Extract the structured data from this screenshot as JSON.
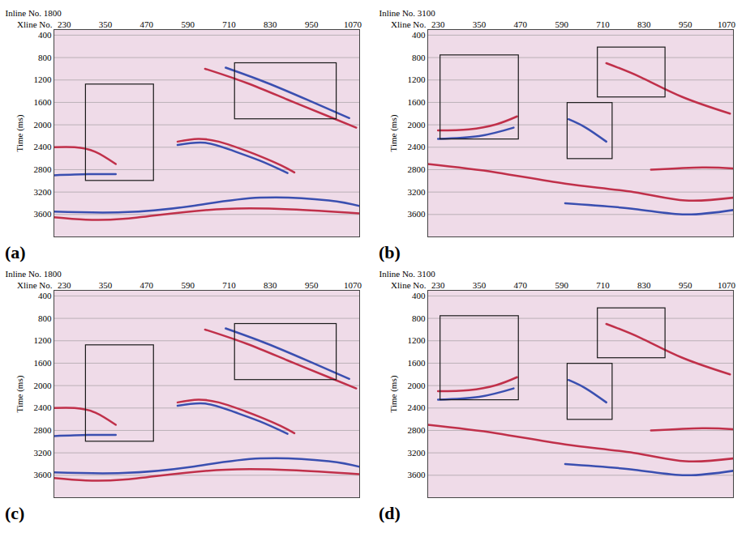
{
  "chart_data": [
    {
      "type": "seismic_section",
      "panel": "(a)",
      "title": "Inline No. 1800",
      "xlabel": "Xline No.",
      "ylabel": "Time (ms)",
      "xlim": [
        200,
        1090
      ],
      "xticks": [
        230,
        350,
        470,
        590,
        710,
        830,
        950,
        1070
      ],
      "ylim": [
        300,
        4000
      ],
      "yticks": [
        400,
        800,
        1200,
        1600,
        2000,
        2400,
        2800,
        3200,
        3600
      ],
      "grid": true,
      "boxes": [
        {
          "x": [
            293,
            491
          ],
          "y": [
            1280,
            3000
          ]
        },
        {
          "x": [
            727,
            1023
          ],
          "y": [
            900,
            1900
          ]
        }
      ],
      "reflectors": [
        {
          "color": "#c0304a",
          "points": [
            [
              560,
              2300
            ],
            [
              620,
              2250
            ],
            [
              680,
              2300
            ],
            [
              740,
              2420
            ],
            [
              800,
              2560
            ],
            [
              860,
              2720
            ],
            [
              900,
              2850
            ]
          ]
        },
        {
          "color": "#3a4fb0",
          "points": [
            [
              560,
              2360
            ],
            [
              640,
              2320
            ],
            [
              720,
              2460
            ],
            [
              800,
              2640
            ],
            [
              880,
              2860
            ]
          ]
        },
        {
          "color": "#c0304a",
          "points": [
            [
              640,
              1000
            ],
            [
              760,
              1250
            ],
            [
              880,
              1550
            ],
            [
              1000,
              1850
            ],
            [
              1080,
              2050
            ]
          ]
        },
        {
          "color": "#3a4fb0",
          "points": [
            [
              700,
              980
            ],
            [
              820,
              1250
            ],
            [
              940,
              1560
            ],
            [
              1060,
              1880
            ]
          ]
        },
        {
          "color": "#c0304a",
          "points": [
            [
              200,
              2400
            ],
            [
              260,
              2400
            ],
            [
              320,
              2480
            ],
            [
              380,
              2700
            ]
          ]
        },
        {
          "color": "#3a4fb0",
          "points": [
            [
              200,
              2900
            ],
            [
              300,
              2880
            ],
            [
              380,
              2880
            ]
          ]
        },
        {
          "color": "#3a4fb0",
          "points": [
            [
              200,
              3550
            ],
            [
              400,
              3560
            ],
            [
              600,
              3450
            ],
            [
              800,
              3300
            ],
            [
              1000,
              3350
            ],
            [
              1090,
              3450
            ]
          ]
        },
        {
          "color": "#c0304a",
          "points": [
            [
              200,
              3650
            ],
            [
              400,
              3680
            ],
            [
              700,
              3500
            ],
            [
              1090,
              3580
            ]
          ]
        }
      ]
    },
    {
      "type": "seismic_section",
      "panel": "(b)",
      "title": "Inline No. 3100",
      "xlabel": "Xline No.",
      "ylabel": "Time (ms)",
      "xlim": [
        200,
        1090
      ],
      "xticks": [
        230,
        350,
        470,
        590,
        710,
        830,
        950,
        1070
      ],
      "ylim": [
        300,
        4000
      ],
      "yticks": [
        400,
        800,
        1200,
        1600,
        2000,
        2400,
        2800,
        3200,
        3600
      ],
      "grid": true,
      "boxes": [
        {
          "x": [
            237,
            465
          ],
          "y": [
            760,
            2260
          ]
        },
        {
          "x": [
            695,
            892
          ],
          "y": [
            620,
            1510
          ]
        },
        {
          "x": [
            607,
            738
          ],
          "y": [
            1610,
            2610
          ]
        }
      ],
      "reflectors": [
        {
          "color": "#c0304a",
          "points": [
            [
              230,
              2100
            ],
            [
              320,
              2080
            ],
            [
              400,
              1990
            ],
            [
              460,
              1850
            ]
          ]
        },
        {
          "color": "#3a4fb0",
          "points": [
            [
              230,
              2250
            ],
            [
              350,
              2200
            ],
            [
              450,
              2050
            ]
          ]
        },
        {
          "color": "#c0304a",
          "points": [
            [
              720,
              900
            ],
            [
              820,
              1150
            ],
            [
              940,
              1500
            ],
            [
              1080,
              1800
            ]
          ]
        },
        {
          "color": "#3a4fb0",
          "points": [
            [
              610,
              1900
            ],
            [
              660,
              2050
            ],
            [
              720,
              2300
            ]
          ]
        },
        {
          "color": "#c0304a",
          "points": [
            [
              200,
              2700
            ],
            [
              400,
              2850
            ],
            [
              600,
              3050
            ],
            [
              800,
              3200
            ],
            [
              950,
              3350
            ],
            [
              1090,
              3300
            ]
          ]
        },
        {
          "color": "#3a4fb0",
          "points": [
            [
              600,
              3400
            ],
            [
              800,
              3500
            ],
            [
              950,
              3600
            ],
            [
              1090,
              3520
            ]
          ]
        },
        {
          "color": "#c0304a",
          "points": [
            [
              850,
              2800
            ],
            [
              1000,
              2760
            ],
            [
              1090,
              2780
            ]
          ]
        }
      ]
    },
    {
      "type": "seismic_section",
      "panel": "(c)",
      "title": "Inline No. 1800",
      "xlabel": "Xline No.",
      "ylabel": "Time (ms)",
      "xlim": [
        200,
        1090
      ],
      "xticks": [
        230,
        350,
        470,
        590,
        710,
        830,
        950,
        1070
      ],
      "ylim": [
        300,
        4000
      ],
      "yticks": [
        400,
        800,
        1200,
        1600,
        2000,
        2400,
        2800,
        3200,
        3600
      ],
      "grid": true,
      "boxes": [
        {
          "x": [
            293,
            491
          ],
          "y": [
            1280,
            3000
          ]
        },
        {
          "x": [
            727,
            1023
          ],
          "y": [
            900,
            1900
          ]
        }
      ],
      "reflectors": [
        {
          "color": "#c0304a",
          "points": [
            [
              560,
              2300
            ],
            [
              620,
              2250
            ],
            [
              680,
              2300
            ],
            [
              740,
              2420
            ],
            [
              800,
              2560
            ],
            [
              860,
              2720
            ],
            [
              900,
              2850
            ]
          ]
        },
        {
          "color": "#3a4fb0",
          "points": [
            [
              560,
              2360
            ],
            [
              640,
              2320
            ],
            [
              720,
              2460
            ],
            [
              800,
              2640
            ],
            [
              880,
              2860
            ]
          ]
        },
        {
          "color": "#c0304a",
          "points": [
            [
              640,
              1000
            ],
            [
              760,
              1250
            ],
            [
              880,
              1550
            ],
            [
              1000,
              1850
            ],
            [
              1080,
              2050
            ]
          ]
        },
        {
          "color": "#3a4fb0",
          "points": [
            [
              700,
              980
            ],
            [
              820,
              1250
            ],
            [
              940,
              1560
            ],
            [
              1060,
              1880
            ]
          ]
        },
        {
          "color": "#c0304a",
          "points": [
            [
              200,
              2400
            ],
            [
              260,
              2400
            ],
            [
              320,
              2480
            ],
            [
              380,
              2700
            ]
          ]
        },
        {
          "color": "#3a4fb0",
          "points": [
            [
              200,
              2900
            ],
            [
              300,
              2880
            ],
            [
              380,
              2880
            ]
          ]
        },
        {
          "color": "#3a4fb0",
          "points": [
            [
              200,
              3550
            ],
            [
              400,
              3560
            ],
            [
              600,
              3450
            ],
            [
              800,
              3300
            ],
            [
              1000,
              3350
            ],
            [
              1090,
              3450
            ]
          ]
        },
        {
          "color": "#c0304a",
          "points": [
            [
              200,
              3650
            ],
            [
              400,
              3680
            ],
            [
              700,
              3500
            ],
            [
              1090,
              3580
            ]
          ]
        }
      ]
    },
    {
      "type": "seismic_section",
      "panel": "(d)",
      "title": "Inline No. 3100",
      "xlabel": "Xline No.",
      "ylabel": "Time (ms)",
      "xlim": [
        200,
        1090
      ],
      "xticks": [
        230,
        350,
        470,
        590,
        710,
        830,
        950,
        1070
      ],
      "ylim": [
        300,
        4000
      ],
      "yticks": [
        400,
        800,
        1200,
        1600,
        2000,
        2400,
        2800,
        3200,
        3600
      ],
      "grid": true,
      "boxes": [
        {
          "x": [
            237,
            465
          ],
          "y": [
            760,
            2260
          ]
        },
        {
          "x": [
            695,
            892
          ],
          "y": [
            620,
            1510
          ]
        },
        {
          "x": [
            607,
            738
          ],
          "y": [
            1610,
            2610
          ]
        }
      ],
      "reflectors": [
        {
          "color": "#c0304a",
          "points": [
            [
              230,
              2100
            ],
            [
              320,
              2080
            ],
            [
              400,
              1990
            ],
            [
              460,
              1850
            ]
          ]
        },
        {
          "color": "#3a4fb0",
          "points": [
            [
              230,
              2250
            ],
            [
              350,
              2200
            ],
            [
              450,
              2050
            ]
          ]
        },
        {
          "color": "#c0304a",
          "points": [
            [
              720,
              900
            ],
            [
              820,
              1150
            ],
            [
              940,
              1500
            ],
            [
              1080,
              1800
            ]
          ]
        },
        {
          "color": "#3a4fb0",
          "points": [
            [
              610,
              1900
            ],
            [
              660,
              2050
            ],
            [
              720,
              2300
            ]
          ]
        },
        {
          "color": "#c0304a",
          "points": [
            [
              200,
              2700
            ],
            [
              400,
              2850
            ],
            [
              600,
              3050
            ],
            [
              800,
              3200
            ],
            [
              950,
              3350
            ],
            [
              1090,
              3300
            ]
          ]
        },
        {
          "color": "#3a4fb0",
          "points": [
            [
              600,
              3400
            ],
            [
              800,
              3500
            ],
            [
              950,
              3600
            ],
            [
              1090,
              3520
            ]
          ]
        },
        {
          "color": "#c0304a",
          "points": [
            [
              850,
              2800
            ],
            [
              1000,
              2760
            ],
            [
              1090,
              2780
            ]
          ]
        }
      ]
    }
  ]
}
